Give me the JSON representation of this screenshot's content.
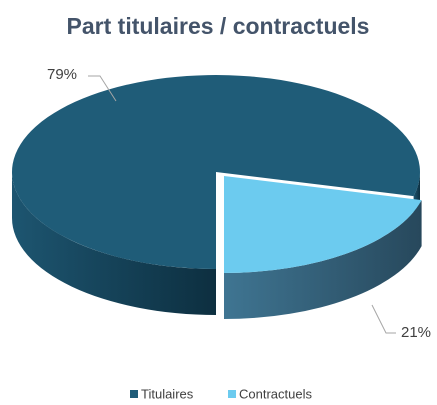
{
  "chart_data": {
    "type": "pie3d",
    "title": "Part titulaires / contractuels",
    "categories": [
      "Titulaires",
      "Contractuels"
    ],
    "values": [
      79,
      21
    ],
    "value_labels": [
      "79%",
      "21%"
    ],
    "colors": [
      "#1f5c78",
      "#6ccbef"
    ],
    "legend": "bottom"
  }
}
